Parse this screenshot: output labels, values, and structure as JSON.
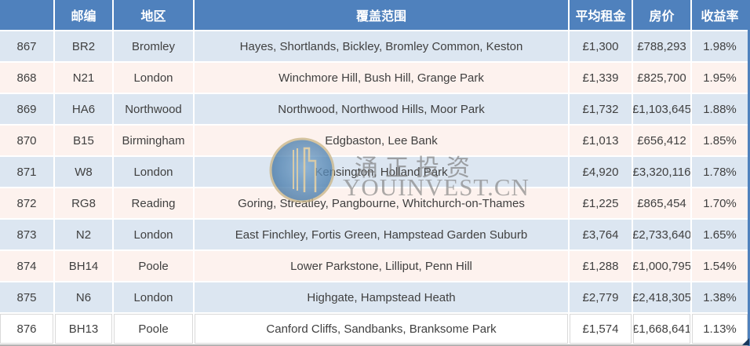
{
  "table": {
    "columns": [
      {
        "key": "index",
        "label": ""
      },
      {
        "key": "postcode",
        "label": "邮编"
      },
      {
        "key": "area",
        "label": "地区"
      },
      {
        "key": "coverage",
        "label": "覆盖范围"
      },
      {
        "key": "avg_rent",
        "label": "平均租金"
      },
      {
        "key": "price",
        "label": "房价"
      },
      {
        "key": "yield",
        "label": "收益率"
      }
    ],
    "rows": [
      [
        "867",
        "BR2",
        "Bromley",
        "Hayes, Shortlands, Bickley, Bromley Common, Keston",
        "£1,300",
        "£788,293",
        "1.98%"
      ],
      [
        "868",
        "N21",
        "London",
        "Winchmore Hill, Bush Hill, Grange Park",
        "£1,339",
        "£825,700",
        "1.95%"
      ],
      [
        "869",
        "HA6",
        "Northwood",
        "Northwood, Northwood Hills, Moor Park",
        "£1,732",
        "£1,103,645",
        "1.88%"
      ],
      [
        "870",
        "B15",
        "Birmingham",
        "Edgbaston, Lee Bank",
        "£1,013",
        "£656,412",
        "1.85%"
      ],
      [
        "871",
        "W8",
        "London",
        "Kensington, Holland Park",
        "£4,920",
        "£3,320,116",
        "1.78%"
      ],
      [
        "872",
        "RG8",
        "Reading",
        "Goring, Streatley, Pangbourne, Whitchurch-on-Thames",
        "£1,225",
        "£865,454",
        "1.70%"
      ],
      [
        "873",
        "N2",
        "London",
        "East Finchley, Fortis Green, Hampstead Garden Suburb",
        "£3,764",
        "£2,733,640",
        "1.65%"
      ],
      [
        "874",
        "BH14",
        "Poole",
        "Lower Parkstone, Lilliput, Penn Hill",
        "£1,288",
        "£1,000,795",
        "1.54%"
      ],
      [
        "875",
        "N6",
        "London",
        "Highgate, Hampstead Heath",
        "£2,779",
        "£2,418,305",
        "1.38%"
      ],
      [
        "876",
        "BH13",
        "Poole",
        "Canford Cliffs, Sandbanks, Branksome Park",
        "£1,574",
        "£1,668,641",
        "1.13%"
      ]
    ]
  },
  "watermark": {
    "cn_text": "涌正投资",
    "site_text": "YOUINVEST.CN"
  },
  "colors": {
    "header_bg": "#4f81bd",
    "row_blue": "#dce6f1",
    "row_pink": "#fdf2ee",
    "row_white": "#ffffff",
    "cell_text": "#404040",
    "right_strip": "#4f81bd",
    "resize_handle": "#17375d",
    "logo_ring": "#c9b68a",
    "logo_fill": "#4c7fae"
  }
}
